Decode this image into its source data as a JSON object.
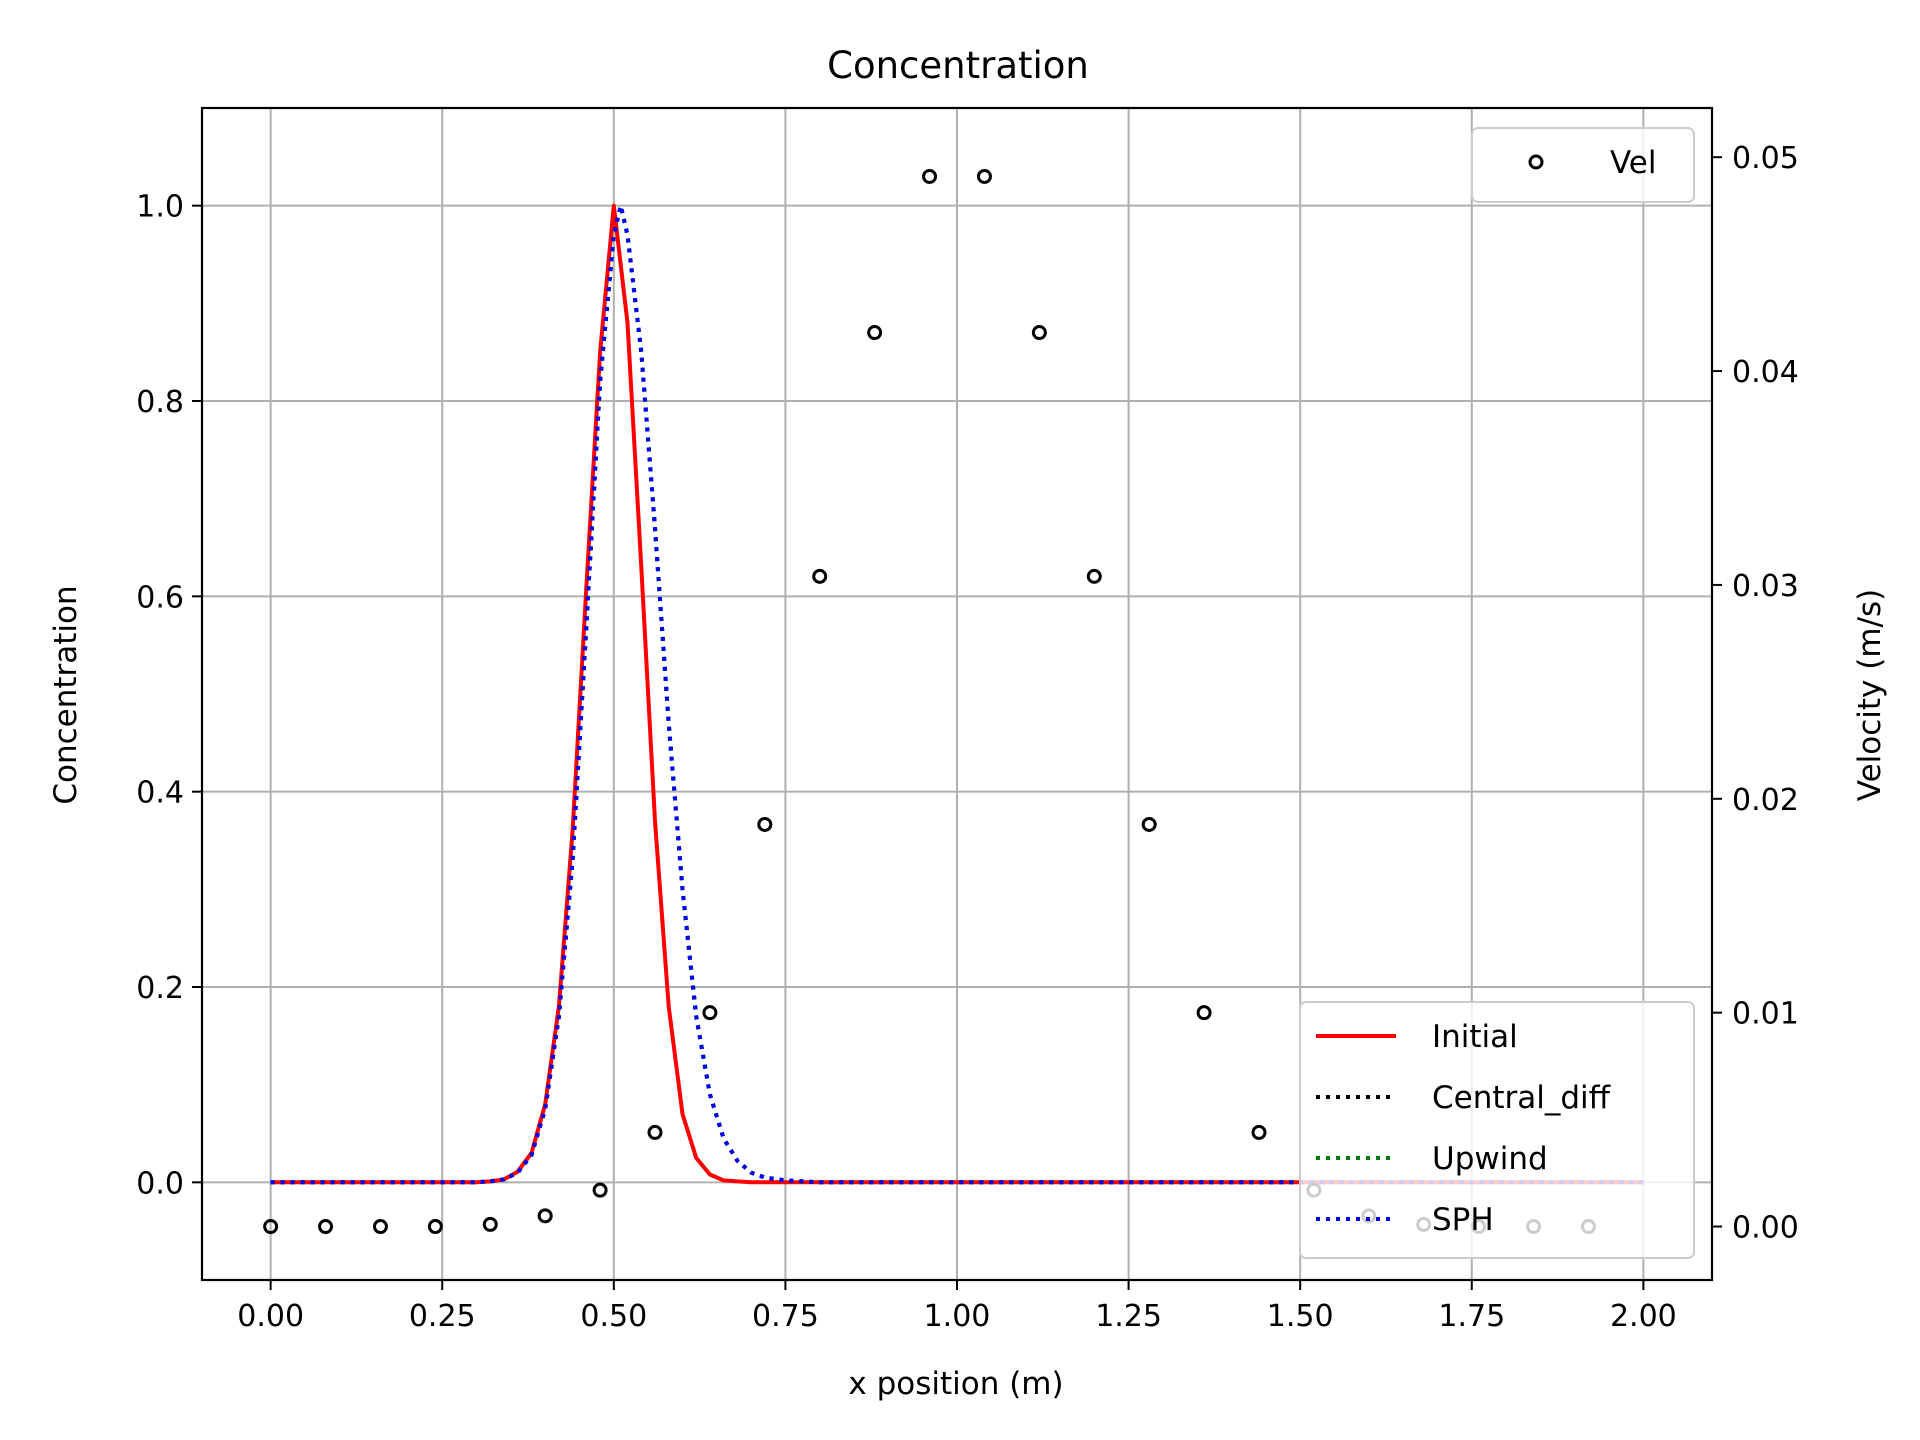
{
  "chart_data": {
    "type": "line",
    "title": "Concentration",
    "xlabel": "x position (m)",
    "ylabel": "Concentration",
    "y2label": "Velocity (m/s)",
    "xlim": [
      -0.1,
      2.1
    ],
    "ylim": [
      -0.1,
      1.1
    ],
    "y2lim": [
      -0.0025,
      0.0523
    ],
    "grid": true,
    "x_ticks": [
      "0.00",
      "0.25",
      "0.50",
      "0.75",
      "1.00",
      "1.25",
      "1.50",
      "1.75",
      "2.00"
    ],
    "y_ticks": [
      "0.0",
      "0.2",
      "0.4",
      "0.6",
      "0.8",
      "1.0"
    ],
    "y2_ticks": [
      "0.00",
      "0.01",
      "0.02",
      "0.03",
      "0.04",
      "0.05"
    ],
    "legend_primary_position": "lower right",
    "legend_secondary_position": "upper right",
    "series": [
      {
        "name": "Initial",
        "color": "#ff0000",
        "style": "solid",
        "x": [
          0.0,
          0.05,
          0.1,
          0.15,
          0.2,
          0.25,
          0.3,
          0.32,
          0.34,
          0.36,
          0.38,
          0.4,
          0.42,
          0.44,
          0.46,
          0.48,
          0.5,
          0.52,
          0.54,
          0.56,
          0.58,
          0.6,
          0.62,
          0.64,
          0.66,
          0.68,
          0.7,
          0.75,
          0.8,
          1.0,
          1.25,
          1.5,
          1.75,
          2.0
        ],
        "y": [
          0.0,
          0.0,
          0.0,
          0.0,
          0.0,
          0.0,
          0.0,
          0.001,
          0.003,
          0.011,
          0.03,
          0.08,
          0.18,
          0.36,
          0.61,
          0.85,
          1.0,
          0.88,
          0.63,
          0.37,
          0.18,
          0.07,
          0.025,
          0.008,
          0.002,
          0.001,
          0.0,
          0.0,
          0.0,
          0.0,
          0.0,
          0.0,
          0.0,
          0.0
        ]
      },
      {
        "name": "Central_diff",
        "color": "#000000",
        "style": "dotted",
        "x": [
          0.0,
          0.05,
          0.1,
          0.15,
          0.2,
          0.25,
          0.3,
          0.32,
          0.34,
          0.36,
          0.38,
          0.4,
          0.42,
          0.44,
          0.46,
          0.48,
          0.5,
          0.51,
          0.52,
          0.54,
          0.56,
          0.58,
          0.6,
          0.62,
          0.64,
          0.66,
          0.68,
          0.7,
          0.72,
          0.75,
          0.8,
          1.0,
          1.25,
          1.5,
          1.75,
          2.0
        ],
        "y": [
          0.0,
          0.0,
          0.0,
          0.0,
          0.0,
          0.0,
          0.0,
          0.001,
          0.003,
          0.01,
          0.028,
          0.075,
          0.17,
          0.33,
          0.57,
          0.82,
          0.97,
          1.0,
          0.97,
          0.85,
          0.67,
          0.47,
          0.3,
          0.17,
          0.09,
          0.045,
          0.022,
          0.01,
          0.005,
          0.002,
          0.0,
          0.0,
          0.0,
          0.0,
          0.0,
          0.0
        ]
      },
      {
        "name": "Upwind",
        "color": "#008000",
        "style": "dotted",
        "x": [
          0.0,
          0.05,
          0.1,
          0.15,
          0.2,
          0.25,
          0.3,
          0.32,
          0.34,
          0.36,
          0.38,
          0.4,
          0.42,
          0.44,
          0.46,
          0.48,
          0.5,
          0.51,
          0.52,
          0.54,
          0.56,
          0.58,
          0.6,
          0.62,
          0.64,
          0.66,
          0.68,
          0.7,
          0.72,
          0.75,
          0.8,
          1.0,
          1.25,
          1.5,
          1.75,
          2.0
        ],
        "y": [
          0.0,
          0.0,
          0.0,
          0.0,
          0.0,
          0.0,
          0.0,
          0.001,
          0.003,
          0.01,
          0.028,
          0.075,
          0.17,
          0.33,
          0.57,
          0.82,
          0.97,
          1.0,
          0.97,
          0.85,
          0.67,
          0.47,
          0.3,
          0.17,
          0.09,
          0.045,
          0.022,
          0.01,
          0.005,
          0.002,
          0.0,
          0.0,
          0.0,
          0.0,
          0.0,
          0.0
        ]
      },
      {
        "name": "SPH",
        "color": "#0000ff",
        "style": "dotted",
        "x": [
          0.0,
          0.05,
          0.1,
          0.15,
          0.2,
          0.25,
          0.3,
          0.32,
          0.34,
          0.36,
          0.38,
          0.4,
          0.42,
          0.44,
          0.46,
          0.48,
          0.5,
          0.51,
          0.52,
          0.54,
          0.56,
          0.58,
          0.6,
          0.62,
          0.64,
          0.66,
          0.68,
          0.7,
          0.72,
          0.75,
          0.8,
          1.0,
          1.25,
          1.5,
          1.75,
          2.0
        ],
        "y": [
          0.0,
          0.0,
          0.0,
          0.0,
          0.0,
          0.0,
          0.0,
          0.001,
          0.003,
          0.01,
          0.028,
          0.075,
          0.17,
          0.33,
          0.57,
          0.82,
          0.97,
          1.0,
          0.97,
          0.85,
          0.67,
          0.47,
          0.3,
          0.17,
          0.09,
          0.045,
          0.022,
          0.01,
          0.005,
          0.002,
          0.0,
          0.0,
          0.0,
          0.0,
          0.0,
          0.0
        ]
      }
    ],
    "scatter_series": [
      {
        "name": "Vel",
        "axis": "right",
        "marker": "open-circle",
        "color": "#000000",
        "x": [
          0.0,
          0.08,
          0.16,
          0.24,
          0.32,
          0.4,
          0.48,
          0.56,
          0.64,
          0.72,
          0.8,
          0.88,
          0.96,
          1.04,
          1.12,
          1.2,
          1.28,
          1.36,
          1.44,
          1.52,
          1.6,
          1.68,
          1.76,
          1.84,
          1.92
        ],
        "y": [
          0.0,
          0.0,
          0.0,
          0.0,
          0.0001,
          0.0005,
          0.0017,
          0.0044,
          0.01,
          0.0188,
          0.0304,
          0.0418,
          0.0491,
          0.0491,
          0.0418,
          0.0304,
          0.0188,
          0.01,
          0.0044,
          0.0017,
          0.0005,
          0.0001,
          0.0,
          0.0,
          0.0
        ]
      }
    ]
  }
}
